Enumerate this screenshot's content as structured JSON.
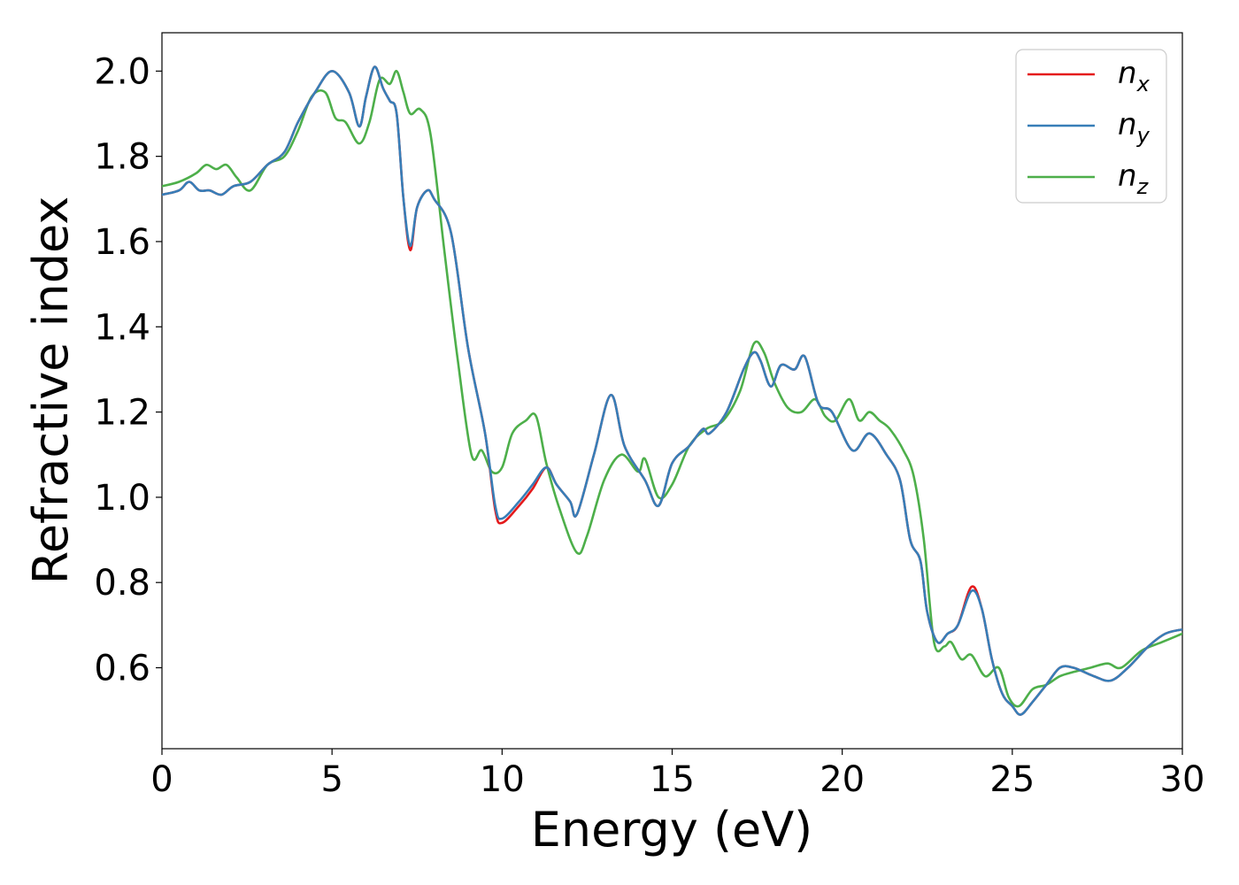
{
  "chart_data": {
    "type": "line",
    "title": "",
    "xlabel": "Energy (eV)",
    "ylabel": "Refractive index",
    "xlim": [
      0,
      30
    ],
    "ylim": [
      0.41,
      2.09
    ],
    "xticks": [
      0,
      5,
      10,
      15,
      20,
      25,
      30
    ],
    "xtick_labels": [
      "0",
      "5",
      "10",
      "15",
      "20",
      "25",
      "30"
    ],
    "yticks": [
      0.6,
      0.8,
      1.0,
      1.2,
      1.4,
      1.6,
      1.8,
      2.0
    ],
    "ytick_labels": [
      "0.6",
      "0.8",
      "1.0",
      "1.2",
      "1.4",
      "1.6",
      "1.8",
      "2.0"
    ],
    "grid": false,
    "legend_position": "top-right",
    "series": [
      {
        "name": "x",
        "legend_base": "n",
        "legend_sub": "x",
        "color": "#e41a1c",
        "x": [
          0,
          0.5,
          0.8,
          1.1,
          1.4,
          1.75,
          2.1,
          2.6,
          3.1,
          3.6,
          4.0,
          4.5,
          5.0,
          5.5,
          5.8,
          6.0,
          6.25,
          6.5,
          6.7,
          6.9,
          7.1,
          7.3,
          7.5,
          7.8,
          8.0,
          8.5,
          9.0,
          9.5,
          9.8,
          10.0,
          10.5,
          10.9,
          11.3,
          11.6,
          12.0,
          12.2,
          12.7,
          13.2,
          13.6,
          14.2,
          14.6,
          15.0,
          15.5,
          15.9,
          16.1,
          16.6,
          17.1,
          17.4,
          17.6,
          17.9,
          18.2,
          18.6,
          18.9,
          19.3,
          19.7,
          20.3,
          20.8,
          21.3,
          21.7,
          22.0,
          22.3,
          22.5,
          22.8,
          23.1,
          23.4,
          23.8,
          24.1,
          24.4,
          24.7,
          25.0,
          25.25,
          25.6,
          26.0,
          26.4,
          26.8,
          27.4,
          27.9,
          28.4,
          29.0,
          29.5,
          30.0
        ],
        "values": [
          1.71,
          1.72,
          1.74,
          1.72,
          1.72,
          1.71,
          1.73,
          1.74,
          1.78,
          1.81,
          1.88,
          1.95,
          2.0,
          1.95,
          1.87,
          1.94,
          2.01,
          1.96,
          1.93,
          1.9,
          1.7,
          1.58,
          1.68,
          1.72,
          1.7,
          1.62,
          1.35,
          1.15,
          0.97,
          0.94,
          0.98,
          1.02,
          1.07,
          1.03,
          0.99,
          0.96,
          1.1,
          1.24,
          1.12,
          1.04,
          0.98,
          1.08,
          1.12,
          1.16,
          1.15,
          1.2,
          1.3,
          1.34,
          1.32,
          1.26,
          1.31,
          1.3,
          1.33,
          1.22,
          1.2,
          1.11,
          1.15,
          1.1,
          1.04,
          0.9,
          0.85,
          0.73,
          0.66,
          0.68,
          0.7,
          0.79,
          0.74,
          0.62,
          0.54,
          0.51,
          0.49,
          0.52,
          0.56,
          0.6,
          0.6,
          0.58,
          0.57,
          0.6,
          0.65,
          0.68,
          0.69
        ]
      },
      {
        "name": "y",
        "legend_base": "n",
        "legend_sub": "y",
        "color": "#377eb8",
        "x": [
          0,
          0.5,
          0.8,
          1.1,
          1.4,
          1.75,
          2.1,
          2.6,
          3.1,
          3.6,
          4.0,
          4.5,
          5.0,
          5.5,
          5.8,
          6.0,
          6.25,
          6.5,
          6.7,
          6.9,
          7.1,
          7.3,
          7.5,
          7.8,
          8.0,
          8.5,
          9.0,
          9.5,
          9.8,
          10.0,
          10.5,
          10.9,
          11.3,
          11.6,
          12.0,
          12.2,
          12.7,
          13.2,
          13.6,
          14.2,
          14.6,
          15.0,
          15.5,
          15.9,
          16.1,
          16.6,
          17.1,
          17.4,
          17.6,
          17.9,
          18.2,
          18.6,
          18.9,
          19.3,
          19.7,
          20.3,
          20.8,
          21.3,
          21.7,
          22.0,
          22.3,
          22.5,
          22.8,
          23.1,
          23.4,
          23.8,
          24.1,
          24.4,
          24.7,
          25.0,
          25.25,
          25.6,
          26.0,
          26.4,
          26.8,
          27.4,
          27.9,
          28.4,
          29.0,
          29.5,
          30.0
        ],
        "values": [
          1.71,
          1.72,
          1.74,
          1.72,
          1.72,
          1.71,
          1.73,
          1.74,
          1.78,
          1.81,
          1.88,
          1.95,
          2.0,
          1.95,
          1.87,
          1.94,
          2.01,
          1.96,
          1.93,
          1.9,
          1.7,
          1.59,
          1.68,
          1.72,
          1.7,
          1.62,
          1.35,
          1.15,
          0.98,
          0.95,
          0.99,
          1.03,
          1.07,
          1.03,
          0.99,
          0.96,
          1.1,
          1.24,
          1.12,
          1.04,
          0.98,
          1.08,
          1.12,
          1.16,
          1.15,
          1.2,
          1.3,
          1.34,
          1.32,
          1.26,
          1.31,
          1.3,
          1.33,
          1.22,
          1.2,
          1.11,
          1.15,
          1.1,
          1.04,
          0.9,
          0.85,
          0.73,
          0.66,
          0.68,
          0.7,
          0.78,
          0.74,
          0.62,
          0.54,
          0.51,
          0.49,
          0.52,
          0.56,
          0.6,
          0.6,
          0.58,
          0.57,
          0.6,
          0.65,
          0.68,
          0.69
        ]
      },
      {
        "name": "z",
        "legend_base": "n",
        "legend_sub": "z",
        "color": "#4daf4a",
        "x": [
          0,
          0.5,
          1.0,
          1.3,
          1.6,
          1.9,
          2.2,
          2.6,
          3.1,
          3.6,
          4.0,
          4.4,
          4.8,
          5.1,
          5.4,
          5.8,
          6.1,
          6.4,
          6.7,
          6.9,
          7.1,
          7.3,
          7.6,
          7.9,
          8.3,
          8.7,
          9.1,
          9.4,
          9.7,
          10.0,
          10.3,
          10.7,
          11.0,
          11.3,
          11.7,
          12.2,
          12.5,
          13.0,
          13.5,
          14.0,
          14.2,
          14.6,
          15.0,
          15.5,
          16.0,
          16.5,
          17.0,
          17.4,
          17.7,
          18.0,
          18.4,
          18.8,
          19.2,
          19.5,
          19.8,
          20.2,
          20.5,
          20.8,
          21.1,
          21.4,
          21.8,
          22.1,
          22.4,
          22.7,
          23.0,
          23.2,
          23.5,
          23.8,
          24.2,
          24.6,
          24.9,
          25.2,
          25.6,
          26.0,
          26.4,
          26.8,
          27.3,
          27.8,
          28.2,
          28.8,
          29.4,
          30.0
        ],
        "values": [
          1.73,
          1.74,
          1.76,
          1.78,
          1.77,
          1.78,
          1.75,
          1.72,
          1.78,
          1.8,
          1.86,
          1.94,
          1.95,
          1.89,
          1.88,
          1.83,
          1.88,
          1.98,
          1.97,
          2.0,
          1.95,
          1.9,
          1.91,
          1.85,
          1.58,
          1.32,
          1.1,
          1.11,
          1.06,
          1.07,
          1.15,
          1.18,
          1.19,
          1.08,
          0.97,
          0.87,
          0.91,
          1.04,
          1.1,
          1.06,
          1.09,
          1.0,
          1.03,
          1.12,
          1.16,
          1.18,
          1.25,
          1.36,
          1.34,
          1.27,
          1.21,
          1.2,
          1.23,
          1.19,
          1.18,
          1.23,
          1.18,
          1.2,
          1.18,
          1.16,
          1.11,
          1.05,
          0.9,
          0.66,
          0.65,
          0.66,
          0.62,
          0.63,
          0.58,
          0.6,
          0.53,
          0.51,
          0.55,
          0.56,
          0.58,
          0.59,
          0.6,
          0.61,
          0.6,
          0.64,
          0.66,
          0.68
        ]
      }
    ]
  }
}
